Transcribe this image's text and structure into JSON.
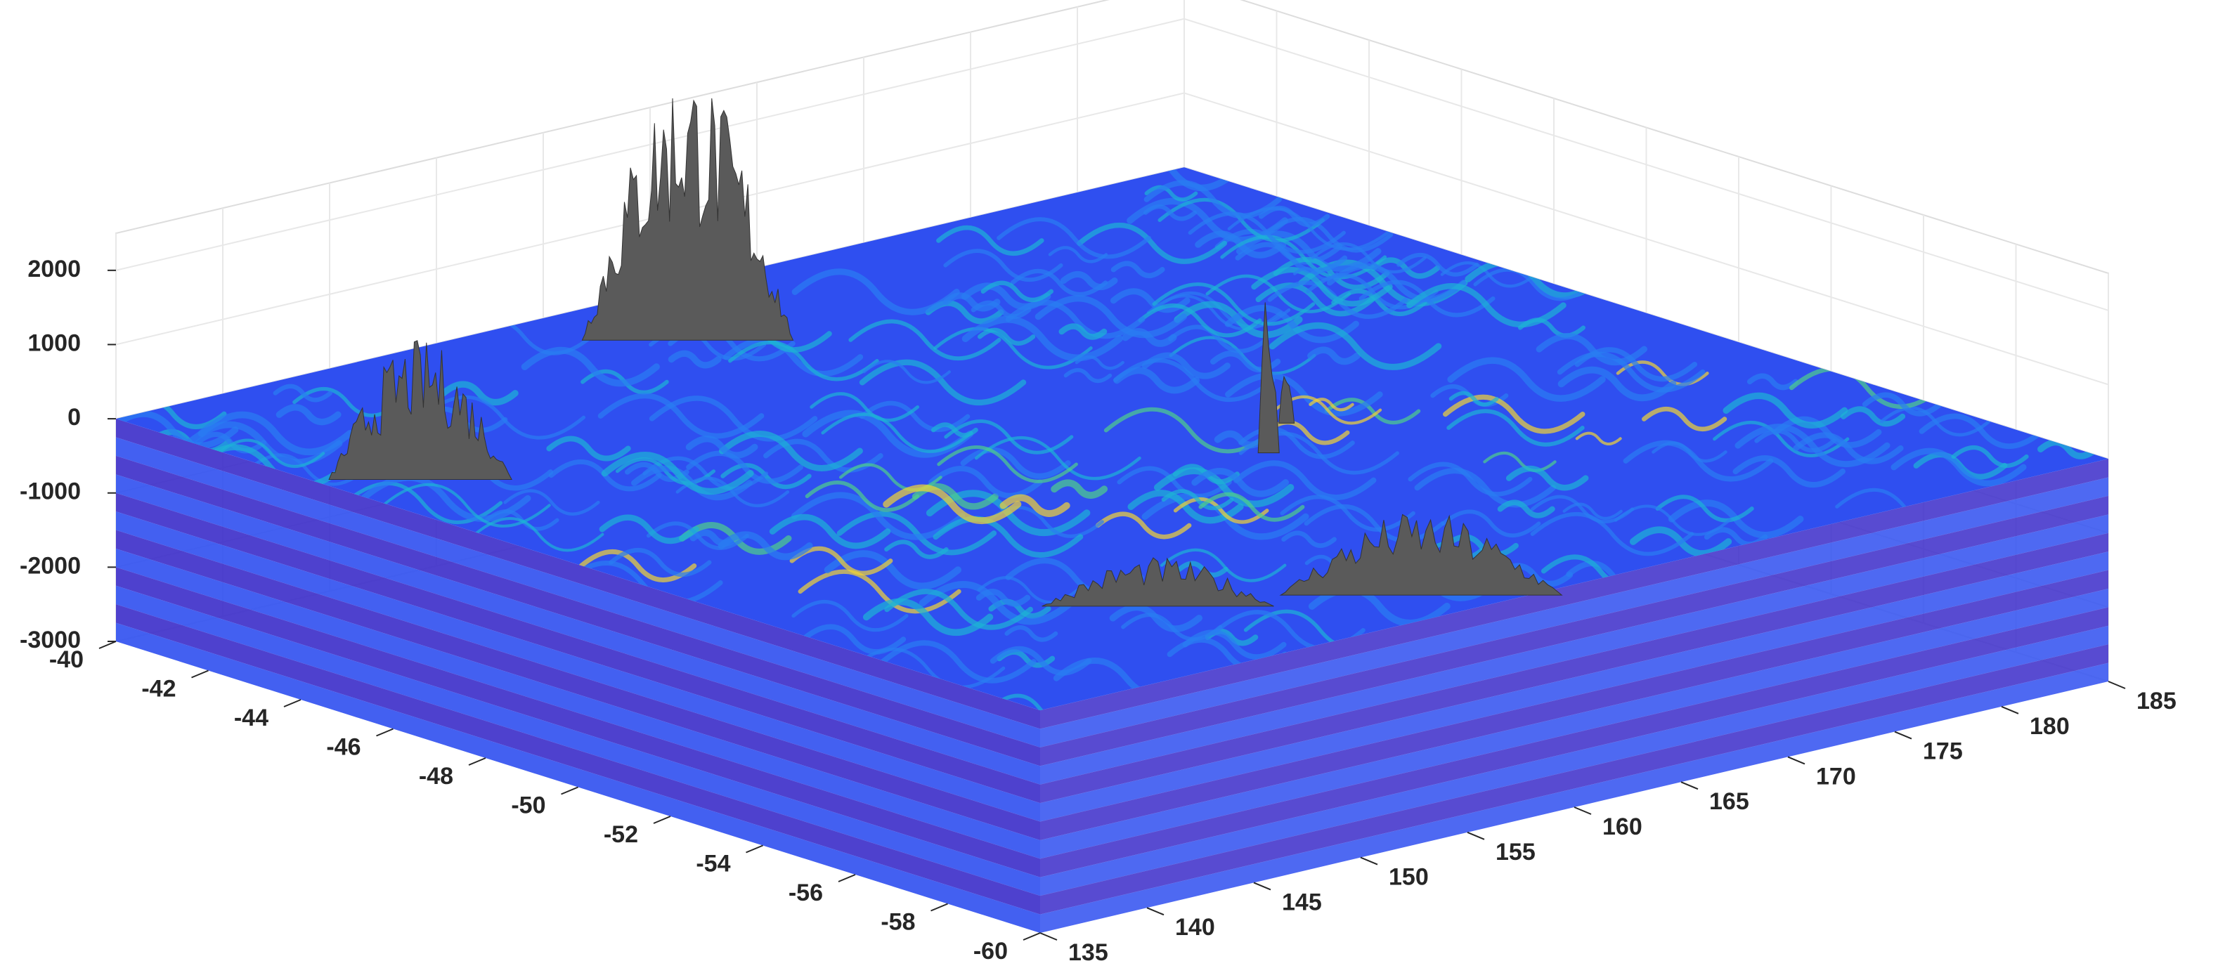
{
  "chart_data": {
    "type": "surface3d",
    "xlim": [
      135,
      185
    ],
    "ylim": [
      -60,
      -40
    ],
    "zlim": [
      -3000,
      2500
    ],
    "xticks": [
      135,
      140,
      145,
      150,
      155,
      160,
      165,
      170,
      175,
      180,
      185
    ],
    "yticks": [
      -60,
      -58,
      -56,
      -54,
      -52,
      -50,
      -48,
      -46,
      -44,
      -42,
      -40
    ],
    "zticks": [
      -3000,
      -2000,
      -1000,
      0,
      1000,
      2000
    ],
    "grid": true,
    "colormap": [
      "#3b2cc9",
      "#2f4ff0",
      "#2a7ef2",
      "#1cb4d6",
      "#4fd08a",
      "#f2d434"
    ],
    "terrain_color": "#5a5a5a"
  }
}
